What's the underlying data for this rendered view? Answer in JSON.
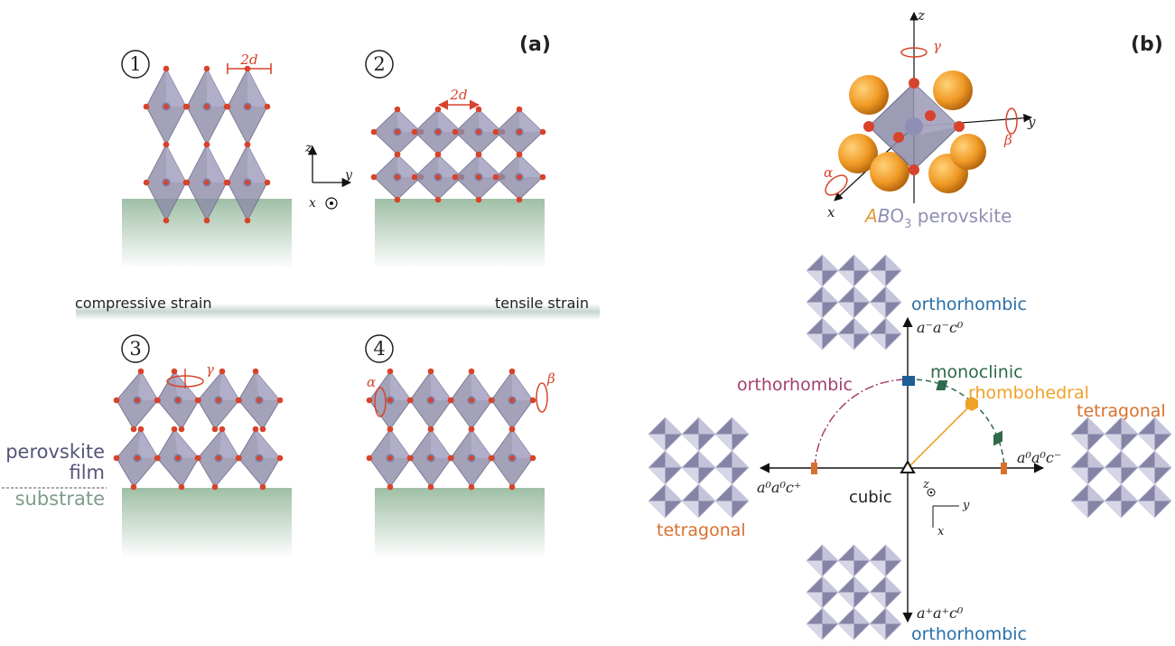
{
  "panel_a": {
    "label": "(a)",
    "numbers": [
      "1",
      "2",
      "3",
      "4"
    ],
    "lattice_spacing_1": "2d",
    "lattice_spacing_2": "2d",
    "axes": {
      "z": "z",
      "y": "y",
      "x": "x"
    },
    "compressive": "compressive strain",
    "tensile": "tensile strain",
    "gamma": "γ",
    "alpha": "α",
    "beta": "β",
    "film_1": "perovskite",
    "film_2": "film",
    "substrate": "substrate"
  },
  "panel_b": {
    "label": "(b)",
    "axes": {
      "z": "z",
      "y": "y",
      "x": "x"
    },
    "rotations": {
      "gamma": "γ",
      "beta": "β",
      "alpha": "α"
    },
    "perovskite": {
      "a": "A",
      "b": "B",
      "o": "O",
      "sub": "3",
      "rest": " perovskite"
    },
    "labels": {
      "ortho_top": "orthorhombic",
      "glazer_top": "a⁻a⁻c⁰",
      "monoclinic": "monoclinic",
      "rhombohedral": "rhombohedral",
      "ortho_left": "orthorhombic",
      "tetragonal_right": "tetragonal",
      "glazer_right": "a⁰a⁰c⁻",
      "glazer_left": "a⁰a⁰c⁺",
      "cubic": "cubic",
      "tetragonal_left": "tetragonal",
      "glazer_bottom": "a⁺a⁺c⁰",
      "ortho_bottom": "orthorhombic",
      "small_z": "z",
      "small_y": "y",
      "small_x": "x"
    },
    "colors": {
      "ortho": "#2a6fa8",
      "monoclinic": "#2f6a4c",
      "rhombo": "#f0a128",
      "ortho_arc": "#a2406c",
      "tetragonal": "#d9702e"
    }
  }
}
